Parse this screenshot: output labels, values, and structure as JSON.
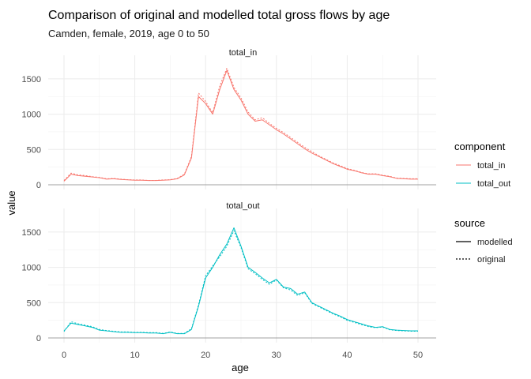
{
  "chart_data": {
    "type": "line",
    "title": "Comparison of original and modelled total gross flows by age",
    "subtitle": "Camden, female, 2019, age 0 to 50",
    "xlabel": "age",
    "ylabel": "value",
    "xlim": [
      0,
      50
    ],
    "ylim": [
      0,
      1700
    ],
    "x_ticks": [
      0,
      10,
      20,
      30,
      40,
      50
    ],
    "y_ticks": [
      0,
      500,
      1000,
      1500
    ],
    "grid": true,
    "legend_position": "right",
    "legends": [
      {
        "title": "component",
        "entries": [
          "total_in",
          "total_out"
        ]
      },
      {
        "title": "source",
        "entries": [
          "modelled",
          "original"
        ]
      }
    ],
    "colors": {
      "total_in": "#F8766D",
      "total_out": "#00BFC4"
    },
    "x": [
      0,
      1,
      2,
      3,
      4,
      5,
      6,
      7,
      8,
      9,
      10,
      11,
      12,
      13,
      14,
      15,
      16,
      17,
      18,
      19,
      20,
      21,
      22,
      23,
      24,
      25,
      26,
      27,
      28,
      29,
      30,
      31,
      32,
      33,
      34,
      35,
      36,
      37,
      38,
      39,
      40,
      41,
      42,
      43,
      44,
      45,
      46,
      47,
      48,
      49,
      50
    ],
    "panels": [
      {
        "strip": "total_in",
        "component": "total_in",
        "series": [
          {
            "name": "modelled",
            "values": [
              50,
              150,
              130,
              120,
              110,
              100,
              80,
              85,
              75,
              70,
              65,
              65,
              60,
              60,
              65,
              70,
              85,
              140,
              380,
              1250,
              1150,
              1000,
              1350,
              1620,
              1350,
              1200,
              1000,
              900,
              920,
              850,
              780,
              720,
              650,
              580,
              510,
              450,
              400,
              350,
              300,
              260,
              220,
              200,
              170,
              150,
              150,
              130,
              115,
              90,
              85,
              80,
              80
            ]
          },
          {
            "name": "original",
            "values": [
              60,
              165,
              140,
              130,
              115,
              105,
              85,
              90,
              80,
              72,
              68,
              68,
              62,
              62,
              68,
              72,
              90,
              150,
              400,
              1300,
              1180,
              1020,
              1400,
              1650,
              1380,
              1230,
              1030,
              920,
              950,
              870,
              800,
              740,
              670,
              600,
              530,
              470,
              410,
              360,
              310,
              270,
              230,
              205,
              175,
              155,
              155,
              135,
              120,
              95,
              90,
              85,
              85
            ]
          }
        ]
      },
      {
        "strip": "total_out",
        "component": "total_out",
        "series": [
          {
            "name": "modelled",
            "values": [
              100,
              210,
              190,
              170,
              150,
              110,
              100,
              90,
              80,
              80,
              75,
              75,
              70,
              70,
              60,
              80,
              60,
              60,
              120,
              450,
              850,
              1000,
              1180,
              1330,
              1560,
              1300,
              1000,
              930,
              850,
              780,
              830,
              720,
              700,
              620,
              650,
              500,
              450,
              400,
              350,
              310,
              260,
              230,
              200,
              170,
              150,
              160,
              120,
              110,
              105,
              100,
              100
            ]
          },
          {
            "name": "original",
            "values": [
              90,
              230,
              200,
              180,
              160,
              120,
              105,
              95,
              85,
              85,
              80,
              80,
              75,
              75,
              65,
              85,
              65,
              65,
              130,
              470,
              880,
              1020,
              1150,
              1300,
              1520,
              1280,
              980,
              910,
              830,
              760,
              820,
              710,
              680,
              600,
              640,
              490,
              440,
              390,
              340,
              300,
              250,
              220,
              190,
              160,
              145,
              155,
              115,
              105,
              100,
              95,
              95
            ]
          }
        ]
      }
    ]
  }
}
